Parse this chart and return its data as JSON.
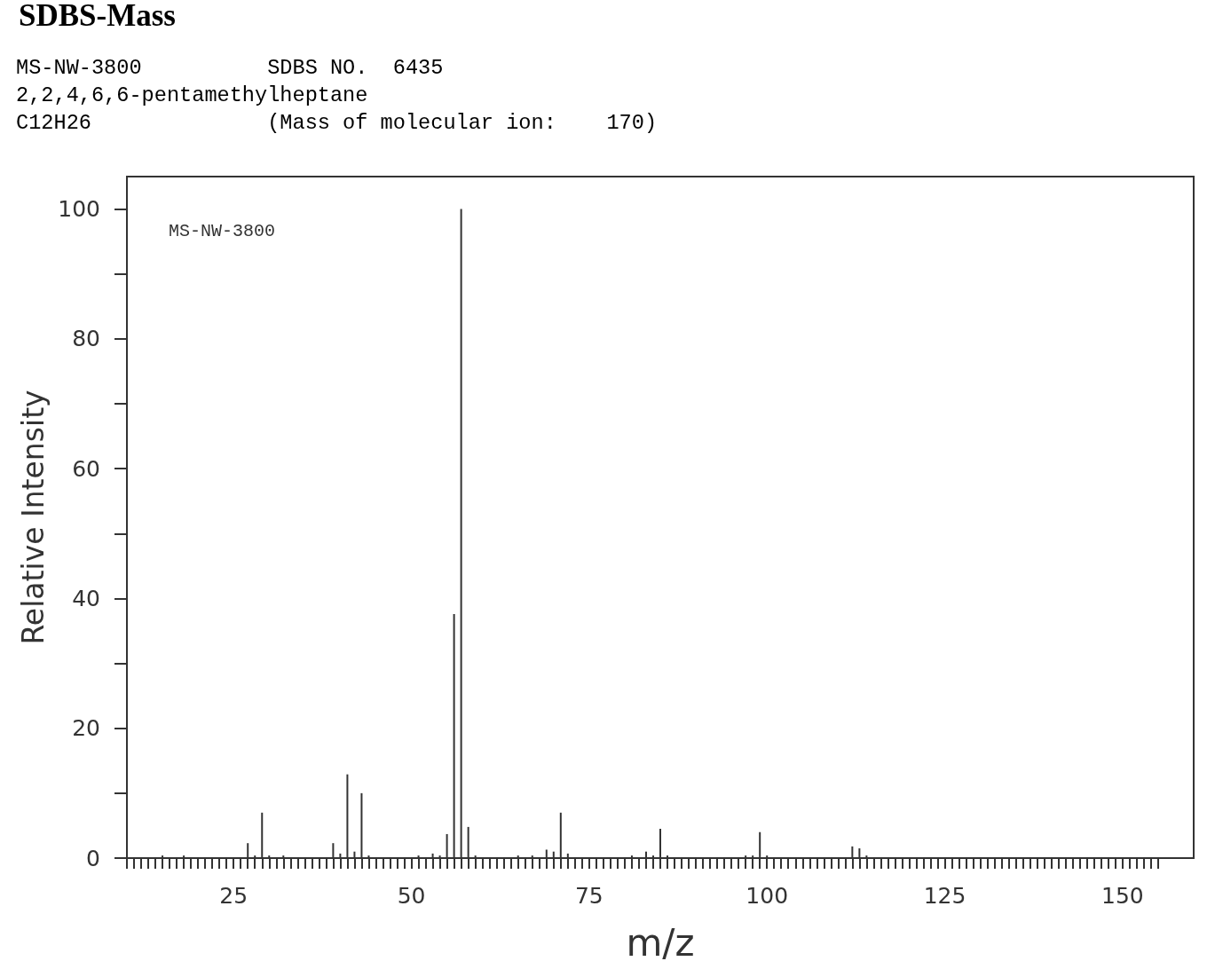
{
  "chart_data": {
    "type": "bar",
    "title": "SDBS-Mass",
    "annotations": [
      "MS-NW-3800          SDBS NO.  6435",
      "2,2,4,6,6-pentamethylheptane",
      "C12H26              (Mass of molecular ion:    170)",
      "MS-NW-3800"
    ],
    "xlabel": "m/z",
    "ylabel": "Relative Intensity",
    "color": "#333333",
    "x": [
      15,
      18,
      27,
      28,
      29,
      30,
      32,
      39,
      40,
      41,
      42,
      43,
      44,
      51,
      53,
      54,
      55,
      56,
      57,
      58,
      59,
      65,
      67,
      69,
      70,
      71,
      72,
      81,
      83,
      84,
      85,
      86,
      97,
      98,
      99,
      100,
      112,
      113,
      114
    ],
    "values": [
      0.4,
      0.4,
      2.3,
      0.4,
      7.0,
      0.4,
      0.4,
      2.3,
      0.7,
      12.9,
      1.0,
      10.0,
      0.4,
      0.4,
      0.7,
      0.4,
      3.7,
      37.6,
      100,
      4.8,
      0.4,
      0.4,
      0.4,
      1.3,
      1.0,
      7.0,
      0.7,
      0.4,
      1.0,
      0.4,
      4.5,
      0.4,
      0.4,
      0.4,
      4.0,
      0.4,
      1.8,
      1.5,
      0.4
    ],
    "xlim": [
      10,
      160
    ],
    "ylim": [
      0,
      105
    ],
    "xticks": [
      {
        "value": 10,
        "label": null
      },
      {
        "value": 11,
        "label": null
      },
      {
        "value": 12,
        "label": null
      },
      {
        "value": 13,
        "label": null
      },
      {
        "value": 14,
        "label": null
      },
      {
        "value": 15,
        "label": null
      },
      {
        "value": 16,
        "label": null
      },
      {
        "value": 17,
        "label": null
      },
      {
        "value": 18,
        "label": null
      },
      {
        "value": 19,
        "label": null
      },
      {
        "value": 20,
        "label": null
      },
      {
        "value": 21,
        "label": null
      },
      {
        "value": 22,
        "label": null
      },
      {
        "value": 23,
        "label": null
      },
      {
        "value": 24,
        "label": null
      },
      25,
      {
        "value": 26,
        "label": null
      },
      {
        "value": 27,
        "label": null
      },
      {
        "value": 28,
        "label": null
      },
      {
        "value": 29,
        "label": null
      },
      {
        "value": 30,
        "label": null
      },
      {
        "value": 31,
        "label": null
      },
      {
        "value": 32,
        "label": null
      },
      {
        "value": 33,
        "label": null
      },
      {
        "value": 34,
        "label": null
      },
      {
        "value": 35,
        "label": null
      },
      {
        "value": 36,
        "label": null
      },
      {
        "value": 37,
        "label": null
      },
      {
        "value": 38,
        "label": null
      },
      {
        "value": 39,
        "label": null
      },
      {
        "value": 40,
        "label": null
      },
      {
        "value": 41,
        "label": null
      },
      {
        "value": 42,
        "label": null
      },
      {
        "value": 43,
        "label": null
      },
      {
        "value": 44,
        "label": null
      },
      {
        "value": 45,
        "label": null
      },
      {
        "value": 46,
        "label": null
      },
      {
        "value": 47,
        "label": null
      },
      {
        "value": 48,
        "label": null
      },
      {
        "value": 49,
        "label": null
      },
      50,
      {
        "value": 51,
        "label": null
      },
      {
        "value": 52,
        "label": null
      },
      {
        "value": 53,
        "label": null
      },
      {
        "value": 54,
        "label": null
      },
      {
        "value": 55,
        "label": null
      },
      {
        "value": 56,
        "label": null
      },
      {
        "value": 57,
        "label": null
      },
      {
        "value": 58,
        "label": null
      },
      {
        "value": 59,
        "label": null
      },
      {
        "value": 60,
        "label": null
      },
      {
        "value": 61,
        "label": null
      },
      {
        "value": 62,
        "label": null
      },
      {
        "value": 63,
        "label": null
      },
      {
        "value": 64,
        "label": null
      },
      {
        "value": 65,
        "label": null
      },
      {
        "value": 66,
        "label": null
      },
      {
        "value": 67,
        "label": null
      },
      {
        "value": 68,
        "label": null
      },
      {
        "value": 69,
        "label": null
      },
      {
        "value": 70,
        "label": null
      },
      {
        "value": 71,
        "label": null
      },
      {
        "value": 72,
        "label": null
      },
      {
        "value": 73,
        "label": null
      },
      {
        "value": 74,
        "label": null
      },
      75,
      {
        "value": 76,
        "label": null
      },
      {
        "value": 77,
        "label": null
      },
      {
        "value": 78,
        "label": null
      },
      {
        "value": 79,
        "label": null
      },
      {
        "value": 80,
        "label": null
      },
      {
        "value": 81,
        "label": null
      },
      {
        "value": 82,
        "label": null
      },
      {
        "value": 83,
        "label": null
      },
      {
        "value": 84,
        "label": null
      },
      {
        "value": 85,
        "label": null
      },
      {
        "value": 86,
        "label": null
      },
      {
        "value": 87,
        "label": null
      },
      {
        "value": 88,
        "label": null
      },
      {
        "value": 89,
        "label": null
      },
      {
        "value": 90,
        "label": null
      },
      {
        "value": 91,
        "label": null
      },
      {
        "value": 92,
        "label": null
      },
      {
        "value": 93,
        "label": null
      },
      {
        "value": 94,
        "label": null
      },
      {
        "value": 95,
        "label": null
      },
      {
        "value": 96,
        "label": null
      },
      {
        "value": 97,
        "label": null
      },
      {
        "value": 98,
        "label": null
      },
      {
        "value": 99,
        "label": null
      },
      100,
      {
        "value": 101,
        "label": null
      },
      {
        "value": 102,
        "label": null
      },
      {
        "value": 103,
        "label": null
      },
      {
        "value": 104,
        "label": null
      },
      {
        "value": 105,
        "label": null
      },
      {
        "value": 106,
        "label": null
      },
      {
        "value": 107,
        "label": null
      },
      {
        "value": 108,
        "label": null
      },
      {
        "value": 109,
        "label": null
      },
      {
        "value": 110,
        "label": null
      },
      {
        "value": 111,
        "label": null
      },
      {
        "value": 112,
        "label": null
      },
      {
        "value": 113,
        "label": null
      },
      {
        "value": 114,
        "label": null
      },
      {
        "value": 115,
        "label": null
      },
      {
        "value": 116,
        "label": null
      },
      {
        "value": 117,
        "label": null
      },
      {
        "value": 118,
        "label": null
      },
      {
        "value": 119,
        "label": null
      },
      {
        "value": 120,
        "label": null
      },
      {
        "value": 121,
        "label": null
      },
      {
        "value": 122,
        "label": null
      },
      {
        "value": 123,
        "label": null
      },
      {
        "value": 124,
        "label": null
      },
      125,
      {
        "value": 126,
        "label": null
      },
      {
        "value": 127,
        "label": null
      },
      {
        "value": 128,
        "label": null
      },
      {
        "value": 129,
        "label": null
      },
      {
        "value": 130,
        "label": null
      },
      {
        "value": 131,
        "label": null
      },
      {
        "value": 132,
        "label": null
      },
      {
        "value": 133,
        "label": null
      },
      {
        "value": 134,
        "label": null
      },
      {
        "value": 135,
        "label": null
      },
      {
        "value": 136,
        "label": null
      },
      {
        "value": 137,
        "label": null
      },
      {
        "value": 138,
        "label": null
      },
      {
        "value": 139,
        "label": null
      },
      {
        "value": 140,
        "label": null
      },
      {
        "value": 141,
        "label": null
      },
      {
        "value": 142,
        "label": null
      },
      {
        "value": 143,
        "label": null
      },
      {
        "value": 144,
        "label": null
      },
      {
        "value": 145,
        "label": null
      },
      {
        "value": 146,
        "label": null
      },
      {
        "value": 147,
        "label": null
      },
      {
        "value": 148,
        "label": null
      },
      {
        "value": 149,
        "label": null
      },
      150,
      {
        "value": 151,
        "label": null
      },
      {
        "value": 152,
        "label": null
      },
      {
        "value": 153,
        "label": null
      },
      {
        "value": 154,
        "label": null
      },
      {
        "value": 155,
        "label": null
      }
    ],
    "yticks": [
      0,
      {
        "value": 10,
        "label": null
      },
      20,
      {
        "value": 30,
        "label": null
      },
      40,
      {
        "value": 50,
        "label": null
      },
      60,
      {
        "value": 70,
        "label": null
      },
      80,
      {
        "value": 90,
        "label": null
      },
      100
    ]
  }
}
